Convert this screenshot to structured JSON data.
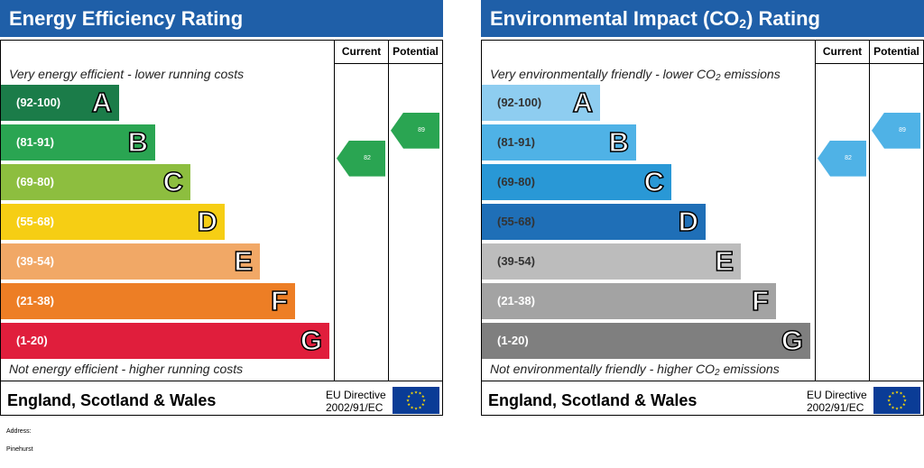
{
  "energy": {
    "title": "Energy Efficiency Rating",
    "current_header": "Current",
    "potential_header": "Potential",
    "top_caption": "Very energy efficient - lower running costs",
    "bottom_caption": "Not energy efficient - higher running costs",
    "bands": [
      {
        "range": "(92-100)",
        "letter": "A",
        "color": "#1b7c49",
        "dark": false
      },
      {
        "range": "(81-91)",
        "letter": "B",
        "color": "#2aa552",
        "dark": false
      },
      {
        "range": "(69-80)",
        "letter": "C",
        "color": "#8dbe3f",
        "dark": false
      },
      {
        "range": "(55-68)",
        "letter": "D",
        "color": "#f6ce14",
        "dark": false
      },
      {
        "range": "(39-54)",
        "letter": "E",
        "color": "#f1a866",
        "dark": false
      },
      {
        "range": "(21-38)",
        "letter": "F",
        "color": "#ed7e25",
        "dark": false
      },
      {
        "range": "(1-20)",
        "letter": "G",
        "color": "#e01e3c",
        "dark": false
      }
    ],
    "current": {
      "value": "82",
      "band": "B",
      "color": "#2aa552"
    },
    "potential": {
      "value": "89",
      "band": "B",
      "color": "#2aa552"
    },
    "footer": "England, Scotland & Wales",
    "eu_line1": "EU Directive",
    "eu_line2": "2002/91/EC"
  },
  "environment": {
    "title_prefix": "Environmental Impact (CO",
    "title_sub": "2",
    "title_suffix": ") Rating",
    "current_header": "Current",
    "potential_header": "Potential",
    "top_caption_prefix": "Very environmentally friendly - lower CO",
    "top_caption_sub": "2",
    "top_caption_suffix": " emissions",
    "bottom_caption_prefix": "Not environmentally friendly - higher CO",
    "bottom_caption_sub": "2",
    "bottom_caption_suffix": " emissions",
    "bands": [
      {
        "range": "(92-100)",
        "letter": "A",
        "color": "#8ecdf0",
        "dark": true
      },
      {
        "range": "(81-91)",
        "letter": "B",
        "color": "#4fb2e6",
        "dark": true
      },
      {
        "range": "(69-80)",
        "letter": "C",
        "color": "#2998d6",
        "dark": true
      },
      {
        "range": "(55-68)",
        "letter": "D",
        "color": "#1f6fb7",
        "dark": true
      },
      {
        "range": "(39-54)",
        "letter": "E",
        "color": "#bcbcbc",
        "dark": true
      },
      {
        "range": "(21-38)",
        "letter": "F",
        "color": "#a3a3a3",
        "dark": false
      },
      {
        "range": "(1-20)",
        "letter": "G",
        "color": "#7f7f7f",
        "dark": false
      }
    ],
    "current": {
      "value": "82",
      "band": "B",
      "color": "#4fb2e6"
    },
    "potential": {
      "value": "89",
      "band": "B",
      "color": "#4fb2e6"
    },
    "footer": "England, Scotland & Wales",
    "eu_line1": "EU Directive",
    "eu_line2": "2002/91/EC"
  },
  "address_label": "Address:",
  "address_value": "Pinehurst"
}
